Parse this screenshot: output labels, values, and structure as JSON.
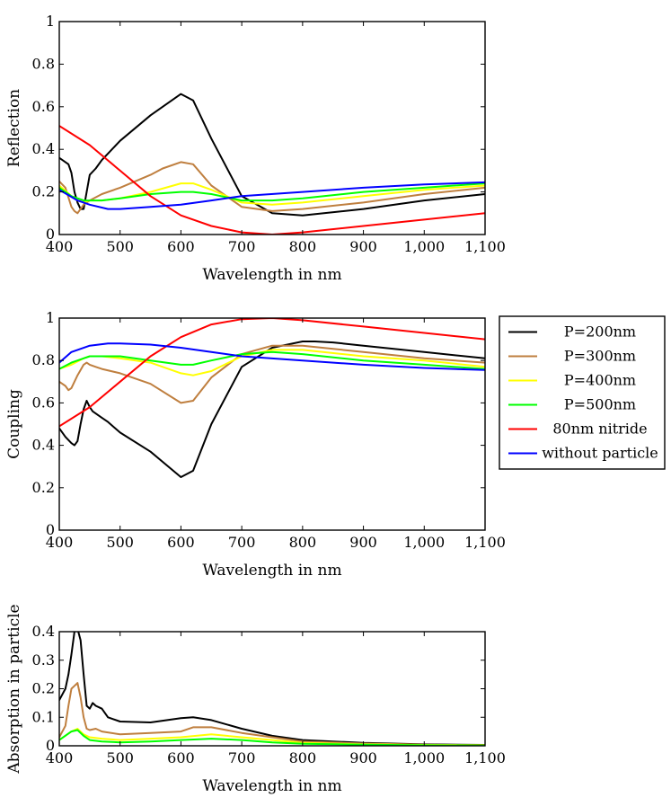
{
  "chart_data": [
    {
      "type": "line",
      "xlabel": "Wavelength in nm",
      "ylabel": "Reflection",
      "xlim": [
        400,
        1100
      ],
      "ylim": [
        0,
        1
      ],
      "xticks": [
        "400",
        "500",
        "600",
        "700",
        "800",
        "900",
        "1,000",
        "1,100"
      ],
      "yticks": [
        "0",
        "0.2",
        "0.4",
        "0.6",
        "0.8",
        "1"
      ],
      "grid": false,
      "series": [
        {
          "name": "P=200nm",
          "color": "#000000",
          "x": [
            400,
            410,
            415,
            420,
            425,
            430,
            435,
            440,
            445,
            450,
            460,
            470,
            480,
            500,
            550,
            600,
            620,
            650,
            700,
            750,
            800,
            900,
            1000,
            1100
          ],
          "y": [
            0.36,
            0.34,
            0.33,
            0.29,
            0.2,
            0.15,
            0.12,
            0.12,
            0.2,
            0.28,
            0.31,
            0.35,
            0.38,
            0.44,
            0.56,
            0.66,
            0.63,
            0.45,
            0.18,
            0.1,
            0.09,
            0.12,
            0.16,
            0.19
          ]
        },
        {
          "name": "P=300nm",
          "color": "#bf7f3f",
          "x": [
            400,
            410,
            420,
            425,
            430,
            440,
            450,
            470,
            500,
            550,
            570,
            600,
            620,
            650,
            700,
            750,
            800,
            900,
            1000,
            1100
          ],
          "y": [
            0.25,
            0.22,
            0.13,
            0.11,
            0.1,
            0.14,
            0.16,
            0.19,
            0.22,
            0.28,
            0.31,
            0.34,
            0.33,
            0.23,
            0.13,
            0.11,
            0.12,
            0.15,
            0.19,
            0.22
          ]
        },
        {
          "name": "P=400nm",
          "color": "#ffff00",
          "x": [
            400,
            420,
            430,
            440,
            450,
            470,
            500,
            550,
            600,
            620,
            650,
            700,
            750,
            800,
            900,
            1000,
            1100
          ],
          "y": [
            0.23,
            0.18,
            0.16,
            0.15,
            0.16,
            0.16,
            0.17,
            0.2,
            0.24,
            0.24,
            0.21,
            0.15,
            0.14,
            0.15,
            0.18,
            0.21,
            0.23
          ]
        },
        {
          "name": "P=500nm",
          "color": "#00ff00",
          "x": [
            400,
            420,
            440,
            450,
            470,
            500,
            550,
            600,
            620,
            650,
            700,
            750,
            800,
            900,
            1000,
            1100
          ],
          "y": [
            0.22,
            0.18,
            0.16,
            0.16,
            0.16,
            0.17,
            0.19,
            0.2,
            0.2,
            0.19,
            0.16,
            0.16,
            0.17,
            0.2,
            0.22,
            0.24
          ]
        },
        {
          "name": "80nm nitride",
          "color": "#ff0000",
          "x": [
            400,
            450,
            500,
            550,
            600,
            650,
            700,
            750,
            800,
            900,
            1000,
            1100
          ],
          "y": [
            0.51,
            0.42,
            0.3,
            0.18,
            0.09,
            0.04,
            0.01,
            0.0,
            0.01,
            0.04,
            0.07,
            0.1
          ]
        },
        {
          "name": "without particle",
          "color": "#0000ff",
          "x": [
            400,
            430,
            450,
            480,
            500,
            550,
            600,
            650,
            700,
            800,
            900,
            1000,
            1100
          ],
          "y": [
            0.21,
            0.16,
            0.14,
            0.12,
            0.12,
            0.13,
            0.14,
            0.16,
            0.18,
            0.2,
            0.22,
            0.235,
            0.245
          ]
        }
      ]
    },
    {
      "type": "line",
      "xlabel": "Wavelength in nm",
      "ylabel": "Coupling",
      "xlim": [
        400,
        1100
      ],
      "ylim": [
        0,
        1
      ],
      "xticks": [
        "400",
        "500",
        "600",
        "700",
        "800",
        "900",
        "1,000",
        "1,100"
      ],
      "yticks": [
        "0",
        "0.2",
        "0.4",
        "0.6",
        "0.8",
        "1"
      ],
      "grid": false,
      "legend_position": "outside-right",
      "series": [
        {
          "name": "P=200nm",
          "color": "#000000",
          "x": [
            400,
            410,
            420,
            425,
            430,
            435,
            440,
            445,
            450,
            455,
            460,
            470,
            480,
            500,
            550,
            600,
            620,
            650,
            700,
            750,
            800,
            820,
            850,
            900,
            1000,
            1100
          ],
          "y": [
            0.48,
            0.44,
            0.41,
            0.4,
            0.42,
            0.5,
            0.57,
            0.61,
            0.58,
            0.56,
            0.55,
            0.53,
            0.51,
            0.46,
            0.37,
            0.25,
            0.28,
            0.5,
            0.77,
            0.86,
            0.89,
            0.89,
            0.885,
            0.87,
            0.84,
            0.81
          ]
        },
        {
          "name": "P=300nm",
          "color": "#bf7f3f",
          "x": [
            400,
            410,
            415,
            420,
            425,
            430,
            440,
            445,
            450,
            460,
            470,
            500,
            550,
            600,
            620,
            650,
            700,
            750,
            800,
            900,
            1000,
            1100
          ],
          "y": [
            0.7,
            0.68,
            0.66,
            0.67,
            0.7,
            0.73,
            0.78,
            0.79,
            0.78,
            0.77,
            0.76,
            0.74,
            0.69,
            0.6,
            0.61,
            0.72,
            0.83,
            0.87,
            0.87,
            0.84,
            0.81,
            0.79
          ]
        },
        {
          "name": "P=400nm",
          "color": "#ffff00",
          "x": [
            400,
            420,
            440,
            450,
            470,
            500,
            550,
            600,
            620,
            650,
            700,
            750,
            800,
            900,
            1000,
            1100
          ],
          "y": [
            0.76,
            0.78,
            0.81,
            0.82,
            0.82,
            0.81,
            0.79,
            0.74,
            0.73,
            0.75,
            0.82,
            0.85,
            0.85,
            0.82,
            0.8,
            0.77
          ]
        },
        {
          "name": "P=500nm",
          "color": "#00ff00",
          "x": [
            400,
            420,
            440,
            450,
            470,
            500,
            550,
            600,
            620,
            650,
            700,
            750,
            800,
            900,
            1000,
            1100
          ],
          "y": [
            0.76,
            0.79,
            0.81,
            0.82,
            0.82,
            0.82,
            0.8,
            0.78,
            0.78,
            0.8,
            0.83,
            0.84,
            0.83,
            0.8,
            0.78,
            0.76
          ]
        },
        {
          "name": "80nm nitride",
          "color": "#ff0000",
          "x": [
            400,
            450,
            500,
            550,
            600,
            650,
            700,
            750,
            800,
            900,
            1000,
            1100
          ],
          "y": [
            0.49,
            0.58,
            0.7,
            0.82,
            0.91,
            0.97,
            0.995,
            1.0,
            0.99,
            0.96,
            0.93,
            0.9
          ]
        },
        {
          "name": "without particle",
          "color": "#0000ff",
          "x": [
            400,
            420,
            450,
            480,
            500,
            550,
            600,
            650,
            700,
            800,
            900,
            1000,
            1100
          ],
          "y": [
            0.79,
            0.84,
            0.87,
            0.88,
            0.88,
            0.875,
            0.86,
            0.84,
            0.82,
            0.8,
            0.78,
            0.765,
            0.755
          ]
        }
      ]
    },
    {
      "type": "line",
      "xlabel": "Wavelength in nm",
      "ylabel": "Absorption in particle",
      "xlim": [
        400,
        1100
      ],
      "ylim": [
        0,
        0.4
      ],
      "xticks": [
        "400",
        "500",
        "600",
        "700",
        "800",
        "900",
        "1,000",
        "1,100"
      ],
      "yticks": [
        "0",
        "0.1",
        "0.2",
        "0.3",
        "0.4"
      ],
      "grid": false,
      "series": [
        {
          "name": "P=200nm",
          "color": "#000000",
          "x": [
            400,
            410,
            415,
            420,
            425,
            430,
            435,
            440,
            445,
            450,
            455,
            460,
            470,
            480,
            500,
            550,
            600,
            620,
            650,
            700,
            750,
            800,
            850,
            900,
            1000,
            1100
          ],
          "y": [
            0.16,
            0.2,
            0.25,
            0.32,
            0.4,
            0.41,
            0.37,
            0.25,
            0.14,
            0.13,
            0.15,
            0.14,
            0.13,
            0.1,
            0.085,
            0.082,
            0.097,
            0.1,
            0.09,
            0.06,
            0.035,
            0.02,
            0.015,
            0.01,
            0.005,
            0.003
          ]
        },
        {
          "name": "P=300nm",
          "color": "#bf7f3f",
          "x": [
            400,
            410,
            415,
            420,
            425,
            430,
            435,
            440,
            445,
            450,
            460,
            470,
            500,
            550,
            600,
            620,
            650,
            700,
            750,
            800,
            900,
            1000,
            1100
          ],
          "y": [
            0.03,
            0.07,
            0.14,
            0.2,
            0.21,
            0.22,
            0.17,
            0.1,
            0.06,
            0.055,
            0.06,
            0.05,
            0.04,
            0.045,
            0.05,
            0.065,
            0.065,
            0.045,
            0.03,
            0.015,
            0.008,
            0.004,
            0.002
          ]
        },
        {
          "name": "P=400nm",
          "color": "#ffff00",
          "x": [
            400,
            420,
            430,
            440,
            450,
            470,
            500,
            550,
            600,
            650,
            700,
            750,
            800,
            900,
            1000,
            1100
          ],
          "y": [
            0.02,
            0.05,
            0.06,
            0.04,
            0.03,
            0.025,
            0.02,
            0.025,
            0.03,
            0.04,
            0.03,
            0.02,
            0.01,
            0.005,
            0.003,
            0.002
          ]
        },
        {
          "name": "P=500nm",
          "color": "#00ff00",
          "x": [
            400,
            420,
            430,
            440,
            450,
            470,
            500,
            550,
            600,
            650,
            700,
            750,
            800,
            900,
            1000,
            1100
          ],
          "y": [
            0.02,
            0.05,
            0.055,
            0.035,
            0.02,
            0.015,
            0.012,
            0.015,
            0.02,
            0.025,
            0.02,
            0.012,
            0.007,
            0.004,
            0.002,
            0.001
          ]
        }
      ]
    }
  ]
}
